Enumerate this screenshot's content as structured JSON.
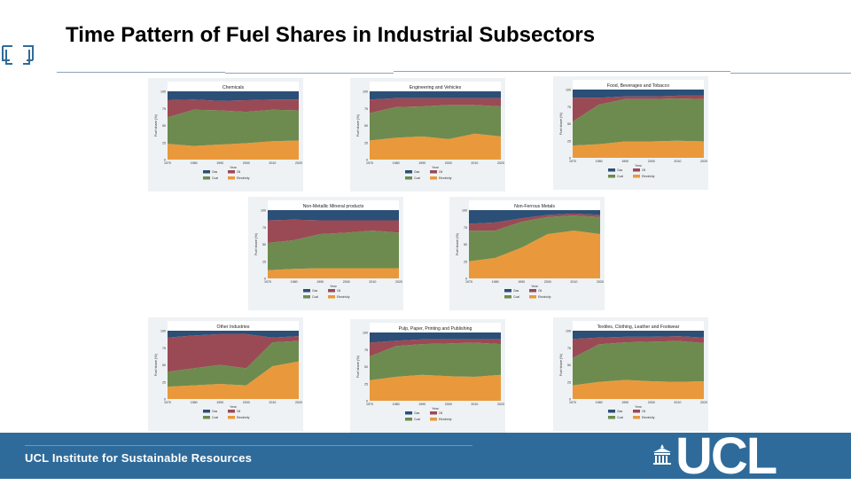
{
  "slide": {
    "title": "Time Pattern of Fuel Shares in Industrial Subsectors"
  },
  "footer": {
    "institute": "UCL Institute for Sustainable Resources",
    "logo_text": "UCL"
  },
  "colors": {
    "gas": "#2b4f76",
    "oil": "#9a4a55",
    "coal": "#6d8b4f",
    "electricity": "#e9993b",
    "footer_bg": "#2f6b9a"
  },
  "chart_data": [
    {
      "type": "area",
      "title": "Chemicals",
      "xlabel": "Year",
      "ylabel": "Fuel share (%)",
      "x": [
        1970,
        1980,
        1990,
        2000,
        2010,
        2020
      ],
      "xticks": [
        "1970",
        "1980",
        "1990",
        "2000",
        "2010",
        "2020"
      ],
      "yticks": [
        "0",
        "25",
        "50",
        "75",
        "100"
      ],
      "ylim": [
        0,
        100
      ],
      "legend": [
        "Gas",
        "Oil",
        "Coal",
        "Electricity"
      ],
      "series": [
        {
          "name": "Electricity",
          "values": [
            23,
            20,
            22,
            24,
            27,
            28
          ]
        },
        {
          "name": "Coal",
          "values": [
            39,
            53,
            50,
            46,
            46,
            44
          ]
        },
        {
          "name": "Oil",
          "values": [
            25,
            15,
            14,
            17,
            15,
            16
          ]
        },
        {
          "name": "Gas",
          "values": [
            13,
            12,
            14,
            13,
            12,
            12
          ]
        }
      ]
    },
    {
      "type": "area",
      "title": "Engineering and Vehicles",
      "xlabel": "Year",
      "ylabel": "Fuel share (%)",
      "x": [
        1970,
        1980,
        1990,
        2000,
        2010,
        2020
      ],
      "xticks": [
        "1970",
        "1980",
        "1990",
        "2000",
        "2010",
        "2020"
      ],
      "yticks": [
        "0",
        "25",
        "50",
        "75",
        "100"
      ],
      "ylim": [
        0,
        100
      ],
      "legend": [
        "Gas",
        "Oil",
        "Coal",
        "Electricity"
      ],
      "series": [
        {
          "name": "Electricity",
          "values": [
            28,
            32,
            34,
            30,
            38,
            34
          ]
        },
        {
          "name": "Coal",
          "values": [
            40,
            45,
            44,
            50,
            42,
            44
          ]
        },
        {
          "name": "Oil",
          "values": [
            20,
            13,
            12,
            10,
            10,
            12
          ]
        },
        {
          "name": "Gas",
          "values": [
            12,
            10,
            10,
            10,
            10,
            10
          ]
        }
      ]
    },
    {
      "type": "area",
      "title": "Food, Beverages and Tobacco",
      "xlabel": "Year",
      "ylabel": "Fuel share (%)",
      "x": [
        1970,
        1980,
        1990,
        2000,
        2010,
        2020
      ],
      "xticks": [
        "1970",
        "1980",
        "1990",
        "2000",
        "2010",
        "2020"
      ],
      "yticks": [
        "0",
        "25",
        "50",
        "75",
        "100"
      ],
      "ylim": [
        0,
        100
      ],
      "legend": [
        "Gas",
        "Oil",
        "Coal",
        "Electricity"
      ],
      "series": [
        {
          "name": "Electricity",
          "values": [
            18,
            20,
            24,
            24,
            25,
            24
          ]
        },
        {
          "name": "Coal",
          "values": [
            35,
            58,
            62,
            62,
            62,
            62
          ]
        },
        {
          "name": "Oil",
          "values": [
            35,
            10,
            4,
            4,
            4,
            5
          ]
        },
        {
          "name": "Gas",
          "values": [
            12,
            12,
            10,
            10,
            9,
            9
          ]
        }
      ]
    },
    {
      "type": "area",
      "title": "Non-Metallic Mineral products",
      "xlabel": "Year",
      "ylabel": "Fuel share (%)",
      "x": [
        1970,
        1980,
        1990,
        2000,
        2010,
        2020
      ],
      "xticks": [
        "1970",
        "1980",
        "1990",
        "2000",
        "2010",
        "2020"
      ],
      "yticks": [
        "0",
        "25",
        "50",
        "75",
        "100"
      ],
      "ylim": [
        0,
        100
      ],
      "legend": [
        "Gas",
        "Oil",
        "Coal",
        "Electricity"
      ],
      "series": [
        {
          "name": "Electricity",
          "values": [
            12,
            14,
            15,
            15,
            15,
            15
          ]
        },
        {
          "name": "Coal",
          "values": [
            40,
            42,
            50,
            52,
            55,
            52
          ]
        },
        {
          "name": "Oil",
          "values": [
            33,
            30,
            20,
            18,
            15,
            18
          ]
        },
        {
          "name": "Gas",
          "values": [
            15,
            14,
            15,
            15,
            15,
            15
          ]
        }
      ]
    },
    {
      "type": "area",
      "title": "Non-Ferrous Metals",
      "xlabel": "Year",
      "ylabel": "Fuel share (%)",
      "x": [
        1970,
        1980,
        1990,
        2000,
        2010,
        2020
      ],
      "xticks": [
        "1970",
        "1980",
        "1990",
        "2000",
        "2010",
        "2020"
      ],
      "yticks": [
        "0",
        "25",
        "50",
        "75",
        "100"
      ],
      "ylim": [
        0,
        100
      ],
      "legend": [
        "Gas",
        "Oil",
        "Coal",
        "Electricity"
      ],
      "series": [
        {
          "name": "Electricity",
          "values": [
            25,
            30,
            45,
            65,
            70,
            65
          ]
        },
        {
          "name": "Coal",
          "values": [
            45,
            40,
            38,
            25,
            22,
            25
          ]
        },
        {
          "name": "Oil",
          "values": [
            10,
            12,
            5,
            3,
            3,
            3
          ]
        },
        {
          "name": "Gas",
          "values": [
            20,
            18,
            12,
            7,
            5,
            7
          ]
        }
      ]
    },
    {
      "type": "area",
      "title": "Other Industries",
      "xlabel": "Year",
      "ylabel": "Fuel share (%)",
      "x": [
        1970,
        1980,
        1990,
        2000,
        2010,
        2020
      ],
      "xticks": [
        "1970",
        "1980",
        "1990",
        "2000",
        "2010",
        "2020"
      ],
      "yticks": [
        "0",
        "25",
        "50",
        "75",
        "100"
      ],
      "ylim": [
        0,
        100
      ],
      "legend": [
        "Gas",
        "Oil",
        "Coal",
        "Electricity"
      ],
      "series": [
        {
          "name": "Electricity",
          "values": [
            18,
            20,
            22,
            20,
            48,
            55
          ]
        },
        {
          "name": "Coal",
          "values": [
            22,
            25,
            28,
            25,
            35,
            30
          ]
        },
        {
          "name": "Oil",
          "values": [
            50,
            48,
            45,
            50,
            7,
            7
          ]
        },
        {
          "name": "Gas",
          "values": [
            10,
            7,
            5,
            5,
            10,
            8
          ]
        }
      ]
    },
    {
      "type": "area",
      "title": "Pulp, Paper, Printing and Publishing",
      "xlabel": "Year",
      "ylabel": "Fuel share (%)",
      "x": [
        1970,
        1980,
        1990,
        2000,
        2010,
        2020
      ],
      "xticks": [
        "1970",
        "1980",
        "1990",
        "2000",
        "2010",
        "2020"
      ],
      "yticks": [
        "0",
        "25",
        "50",
        "75",
        "100"
      ],
      "ylim": [
        0,
        100
      ],
      "legend": [
        "Gas",
        "Oil",
        "Coal",
        "Electricity"
      ],
      "series": [
        {
          "name": "Electricity",
          "values": [
            30,
            35,
            38,
            36,
            35,
            38
          ]
        },
        {
          "name": "Coal",
          "values": [
            35,
            45,
            45,
            48,
            50,
            45
          ]
        },
        {
          "name": "Oil",
          "values": [
            20,
            8,
            7,
            6,
            5,
            7
          ]
        },
        {
          "name": "Gas",
          "values": [
            15,
            12,
            10,
            10,
            10,
            10
          ]
        }
      ]
    },
    {
      "type": "area",
      "title": "Textiles, Clothing, Leather and Footwear",
      "xlabel": "Year",
      "ylabel": "Fuel share (%)",
      "x": [
        1970,
        1980,
        1990,
        2000,
        2010,
        2020
      ],
      "xticks": [
        "1970",
        "1980",
        "1990",
        "2000",
        "2010",
        "2020"
      ],
      "yticks": [
        "0",
        "25",
        "50",
        "75",
        "100"
      ],
      "ylim": [
        0,
        100
      ],
      "legend": [
        "Gas",
        "Oil",
        "Coal",
        "Electricity"
      ],
      "series": [
        {
          "name": "Electricity",
          "values": [
            20,
            25,
            28,
            26,
            25,
            26
          ]
        },
        {
          "name": "Coal",
          "values": [
            40,
            55,
            55,
            58,
            60,
            56
          ]
        },
        {
          "name": "Oil",
          "values": [
            28,
            10,
            8,
            7,
            7,
            8
          ]
        },
        {
          "name": "Gas",
          "values": [
            12,
            10,
            9,
            9,
            8,
            10
          ]
        }
      ]
    }
  ]
}
